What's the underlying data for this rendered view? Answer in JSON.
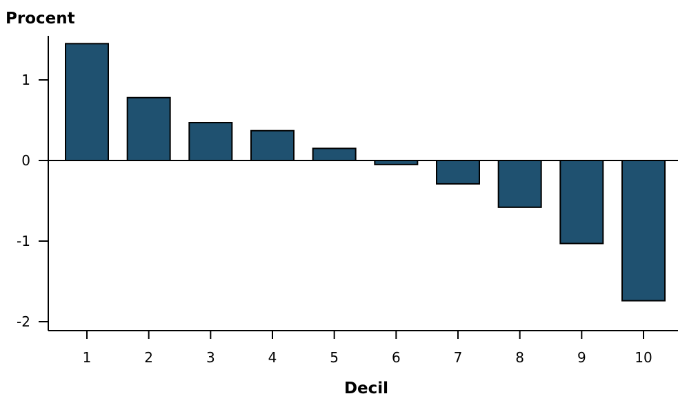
{
  "chart_data": {
    "type": "bar",
    "ylabel": "Procent",
    "xlabel": "Decil",
    "categories": [
      "1",
      "2",
      "3",
      "4",
      "5",
      "6",
      "7",
      "8",
      "9",
      "10"
    ],
    "values": [
      1.45,
      0.78,
      0.47,
      0.37,
      0.15,
      -0.05,
      -0.29,
      -0.58,
      -1.03,
      -1.74
    ],
    "ylim": [
      -2.1,
      1.55
    ],
    "yticks": [
      1,
      0,
      -1,
      -2
    ],
    "ytick_labels": [
      "1",
      "0",
      "-1",
      "-2"
    ],
    "grid": false,
    "colors": {
      "bar": "#1f5170",
      "bar_outline": "#000000",
      "axis": "#000000"
    }
  }
}
